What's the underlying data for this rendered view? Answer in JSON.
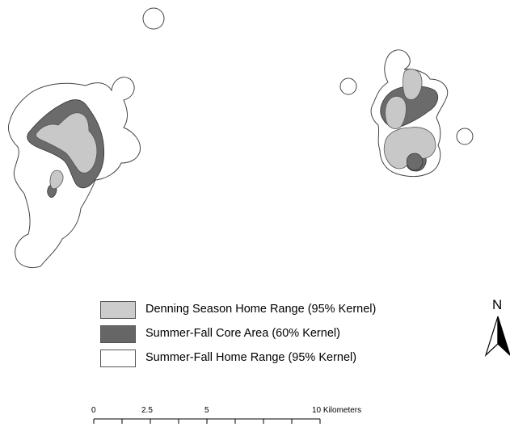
{
  "legend": {
    "items": [
      {
        "label": "Denning Season Home Range (95% Kernel)",
        "fill": "#cccccc"
      },
      {
        "label": "Summer-Fall Core Area (60% Kernel)",
        "fill": "#666666"
      },
      {
        "label": "Summer-Fall Home Range (95% Kernel)",
        "fill": "#ffffff"
      }
    ]
  },
  "north_arrow": {
    "label": "N"
  },
  "scale_bar": {
    "ticks": [
      "0",
      "2.5",
      "5",
      "10 Kilometers"
    ]
  },
  "colors": {
    "summer_fall_home_range": "#ffffff",
    "core_area": "#6b6b6b",
    "denning": "#c8c8c8",
    "outline": "#444444"
  }
}
